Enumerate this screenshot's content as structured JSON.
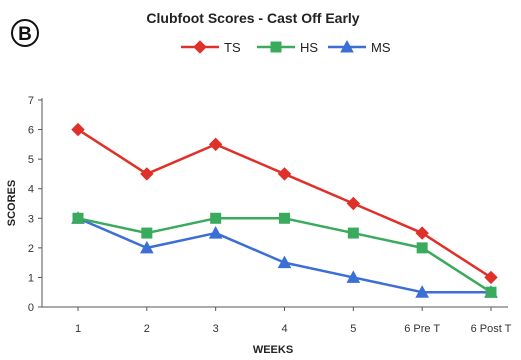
{
  "panel_label": "B",
  "chart_data": {
    "type": "line",
    "title": "Clubfoot Scores - Cast Off Early",
    "xlabel": "WEEKS",
    "ylabel": "SCORES",
    "categories": [
      "1",
      "2",
      "3",
      "4",
      "5",
      "6 Pre T",
      "6 Post T"
    ],
    "ylim": [
      0,
      7
    ],
    "yticks": [
      "0",
      "1",
      "2",
      "3",
      "4",
      "5",
      "6",
      "7"
    ],
    "grid": false,
    "legend_position": "top",
    "series": [
      {
        "name": "TS",
        "color": "#e0302a",
        "marker": "diamond",
        "values": [
          6,
          4.5,
          5.5,
          4.5,
          3.5,
          2.5,
          1
        ]
      },
      {
        "name": "HS",
        "color": "#3aaa5c",
        "marker": "square",
        "values": [
          3,
          2.5,
          3,
          3,
          2.5,
          2,
          0.5
        ]
      },
      {
        "name": "MS",
        "color": "#3b6fd6",
        "marker": "triangle",
        "values": [
          3,
          2,
          2.5,
          1.5,
          1,
          0.5,
          0.5
        ]
      }
    ]
  }
}
